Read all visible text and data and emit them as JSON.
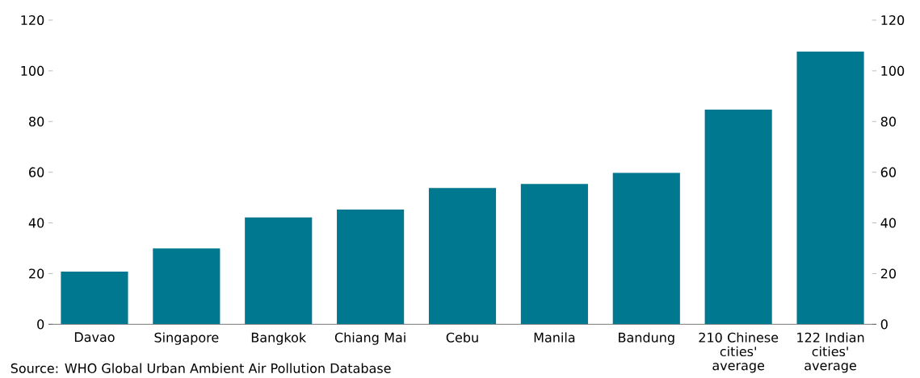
{
  "chart_data": {
    "type": "bar",
    "categories": [
      "Davao",
      "Singapore",
      "Bangkok",
      "Chiang Mai",
      "Cebu",
      "Manila",
      "Bandung",
      "210 Chinese cities' average",
      "122 Indian cities' average"
    ],
    "values": [
      20.8,
      29.9,
      42.2,
      45.3,
      53.8,
      55.4,
      59.7,
      84.7,
      107.6
    ],
    "color": "#00788f",
    "ylim": [
      0,
      120
    ],
    "yticks": [
      0,
      20,
      40,
      60,
      80,
      100,
      120
    ],
    "y2lim": [
      0,
      120
    ],
    "y2ticks": [
      0,
      20,
      40,
      60,
      80,
      100,
      120
    ],
    "annotations": [
      "Source: WHO Global Urban Ambient Air Pollution Database"
    ]
  }
}
